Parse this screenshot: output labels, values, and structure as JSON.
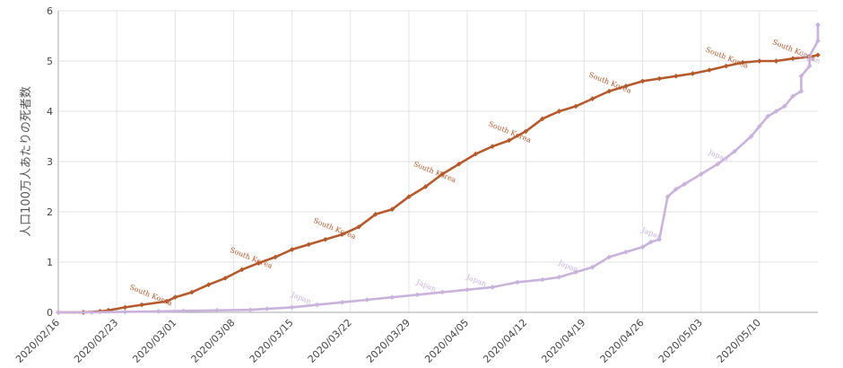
{
  "chart_data": {
    "type": "line",
    "xlabel": "",
    "ylabel": "人口100万人あたりの死者数",
    "ylim": [
      0,
      6
    ],
    "yticks": [
      "0",
      "1",
      "2",
      "3",
      "4",
      "5",
      "6"
    ],
    "x_start": "2020-02-16",
    "x_end": "2020-05-17",
    "xticks": [
      {
        "date": "2020-02-16",
        "label": "2020/02/16"
      },
      {
        "date": "2020-02-23",
        "label": "2020/02/23"
      },
      {
        "date": "2020-03-01",
        "label": "2020/03/01"
      },
      {
        "date": "2020-03-08",
        "label": "2020/03/08"
      },
      {
        "date": "2020-03-15",
        "label": "2020/03/15"
      },
      {
        "date": "2020-03-22",
        "label": "2020/03/22"
      },
      {
        "date": "2020-03-29",
        "label": "2020/03/29"
      },
      {
        "date": "2020-04-05",
        "label": "2020/04/05"
      },
      {
        "date": "2020-04-12",
        "label": "2020/04/12"
      },
      {
        "date": "2020-04-19",
        "label": "2020/04/19"
      },
      {
        "date": "2020-04-26",
        "label": "2020/04/26"
      },
      {
        "date": "2020-05-03",
        "label": "2020/05/03"
      },
      {
        "date": "2020-05-10",
        "label": "2020/05/10"
      }
    ],
    "grid": true,
    "legend": "none",
    "series": [
      {
        "name": "South Korea",
        "color": "#b55a2c",
        "marker": "diamond",
        "label_dates": [
          "2020-02-27",
          "2020-03-10",
          "2020-03-20",
          "2020-04-01",
          "2020-04-10",
          "2020-04-22",
          "2020-05-06",
          "2020-05-14"
        ],
        "points": [
          [
            "2020-02-16",
            0
          ],
          [
            "2020-02-19",
            0
          ],
          [
            "2020-02-21",
            0.02
          ],
          [
            "2020-02-22",
            0.04
          ],
          [
            "2020-02-24",
            0.1
          ],
          [
            "2020-02-26",
            0.15
          ],
          [
            "2020-02-29",
            0.22
          ],
          [
            "2020-03-01",
            0.3
          ],
          [
            "2020-03-03",
            0.4
          ],
          [
            "2020-03-05",
            0.55
          ],
          [
            "2020-03-07",
            0.68
          ],
          [
            "2020-03-09",
            0.85
          ],
          [
            "2020-03-11",
            0.98
          ],
          [
            "2020-03-13",
            1.1
          ],
          [
            "2020-03-15",
            1.25
          ],
          [
            "2020-03-17",
            1.35
          ],
          [
            "2020-03-19",
            1.45
          ],
          [
            "2020-03-21",
            1.55
          ],
          [
            "2020-03-23",
            1.7
          ],
          [
            "2020-03-25",
            1.95
          ],
          [
            "2020-03-27",
            2.05
          ],
          [
            "2020-03-29",
            2.3
          ],
          [
            "2020-03-31",
            2.5
          ],
          [
            "2020-04-02",
            2.75
          ],
          [
            "2020-04-04",
            2.95
          ],
          [
            "2020-04-06",
            3.15
          ],
          [
            "2020-04-08",
            3.3
          ],
          [
            "2020-04-10",
            3.42
          ],
          [
            "2020-04-12",
            3.6
          ],
          [
            "2020-04-14",
            3.85
          ],
          [
            "2020-04-16",
            4.0
          ],
          [
            "2020-04-18",
            4.1
          ],
          [
            "2020-04-20",
            4.25
          ],
          [
            "2020-04-22",
            4.4
          ],
          [
            "2020-04-24",
            4.5
          ],
          [
            "2020-04-26",
            4.6
          ],
          [
            "2020-04-28",
            4.65
          ],
          [
            "2020-04-30",
            4.7
          ],
          [
            "2020-05-02",
            4.75
          ],
          [
            "2020-05-04",
            4.82
          ],
          [
            "2020-05-06",
            4.9
          ],
          [
            "2020-05-08",
            4.97
          ],
          [
            "2020-05-10",
            5.0
          ],
          [
            "2020-05-12",
            5.0
          ],
          [
            "2020-05-14",
            5.05
          ],
          [
            "2020-05-16",
            5.08
          ],
          [
            "2020-05-17",
            5.12
          ]
        ]
      },
      {
        "name": "Japan",
        "color": "#c9b3dc",
        "marker": "diamond",
        "label_dates": [
          "2020-03-16",
          "2020-03-31",
          "2020-04-06",
          "2020-04-17",
          "2020-04-27",
          "2020-05-05",
          "2020-05-16"
        ],
        "points": [
          [
            "2020-02-16",
            0
          ],
          [
            "2020-02-20",
            0
          ],
          [
            "2020-02-24",
            0.01
          ],
          [
            "2020-02-28",
            0.02
          ],
          [
            "2020-03-02",
            0.03
          ],
          [
            "2020-03-06",
            0.04
          ],
          [
            "2020-03-10",
            0.05
          ],
          [
            "2020-03-12",
            0.07
          ],
          [
            "2020-03-15",
            0.1
          ],
          [
            "2020-03-18",
            0.15
          ],
          [
            "2020-03-21",
            0.2
          ],
          [
            "2020-03-24",
            0.25
          ],
          [
            "2020-03-27",
            0.3
          ],
          [
            "2020-03-30",
            0.35
          ],
          [
            "2020-04-02",
            0.4
          ],
          [
            "2020-04-05",
            0.45
          ],
          [
            "2020-04-08",
            0.5
          ],
          [
            "2020-04-11",
            0.6
          ],
          [
            "2020-04-14",
            0.65
          ],
          [
            "2020-04-16",
            0.7
          ],
          [
            "2020-04-18",
            0.8
          ],
          [
            "2020-04-20",
            0.9
          ],
          [
            "2020-04-22",
            1.1
          ],
          [
            "2020-04-24",
            1.2
          ],
          [
            "2020-04-26",
            1.3
          ],
          [
            "2020-04-27",
            1.4
          ],
          [
            "2020-04-28",
            1.45
          ],
          [
            "2020-04-29",
            2.3
          ],
          [
            "2020-04-30",
            2.45
          ],
          [
            "2020-05-01",
            2.55
          ],
          [
            "2020-05-03",
            2.75
          ],
          [
            "2020-05-05",
            2.95
          ],
          [
            "2020-05-07",
            3.2
          ],
          [
            "2020-05-09",
            3.5
          ],
          [
            "2020-05-10",
            3.7
          ],
          [
            "2020-05-11",
            3.9
          ],
          [
            "2020-05-12",
            4.0
          ],
          [
            "2020-05-13",
            4.1
          ],
          [
            "2020-05-14",
            4.3
          ],
          [
            "2020-05-15",
            4.4
          ],
          [
            "2020-05-15",
            4.7
          ],
          [
            "2020-05-16",
            4.9
          ],
          [
            "2020-05-16",
            5.1
          ],
          [
            "2020-05-17",
            5.4
          ],
          [
            "2020-05-17",
            5.72
          ]
        ]
      }
    ]
  }
}
